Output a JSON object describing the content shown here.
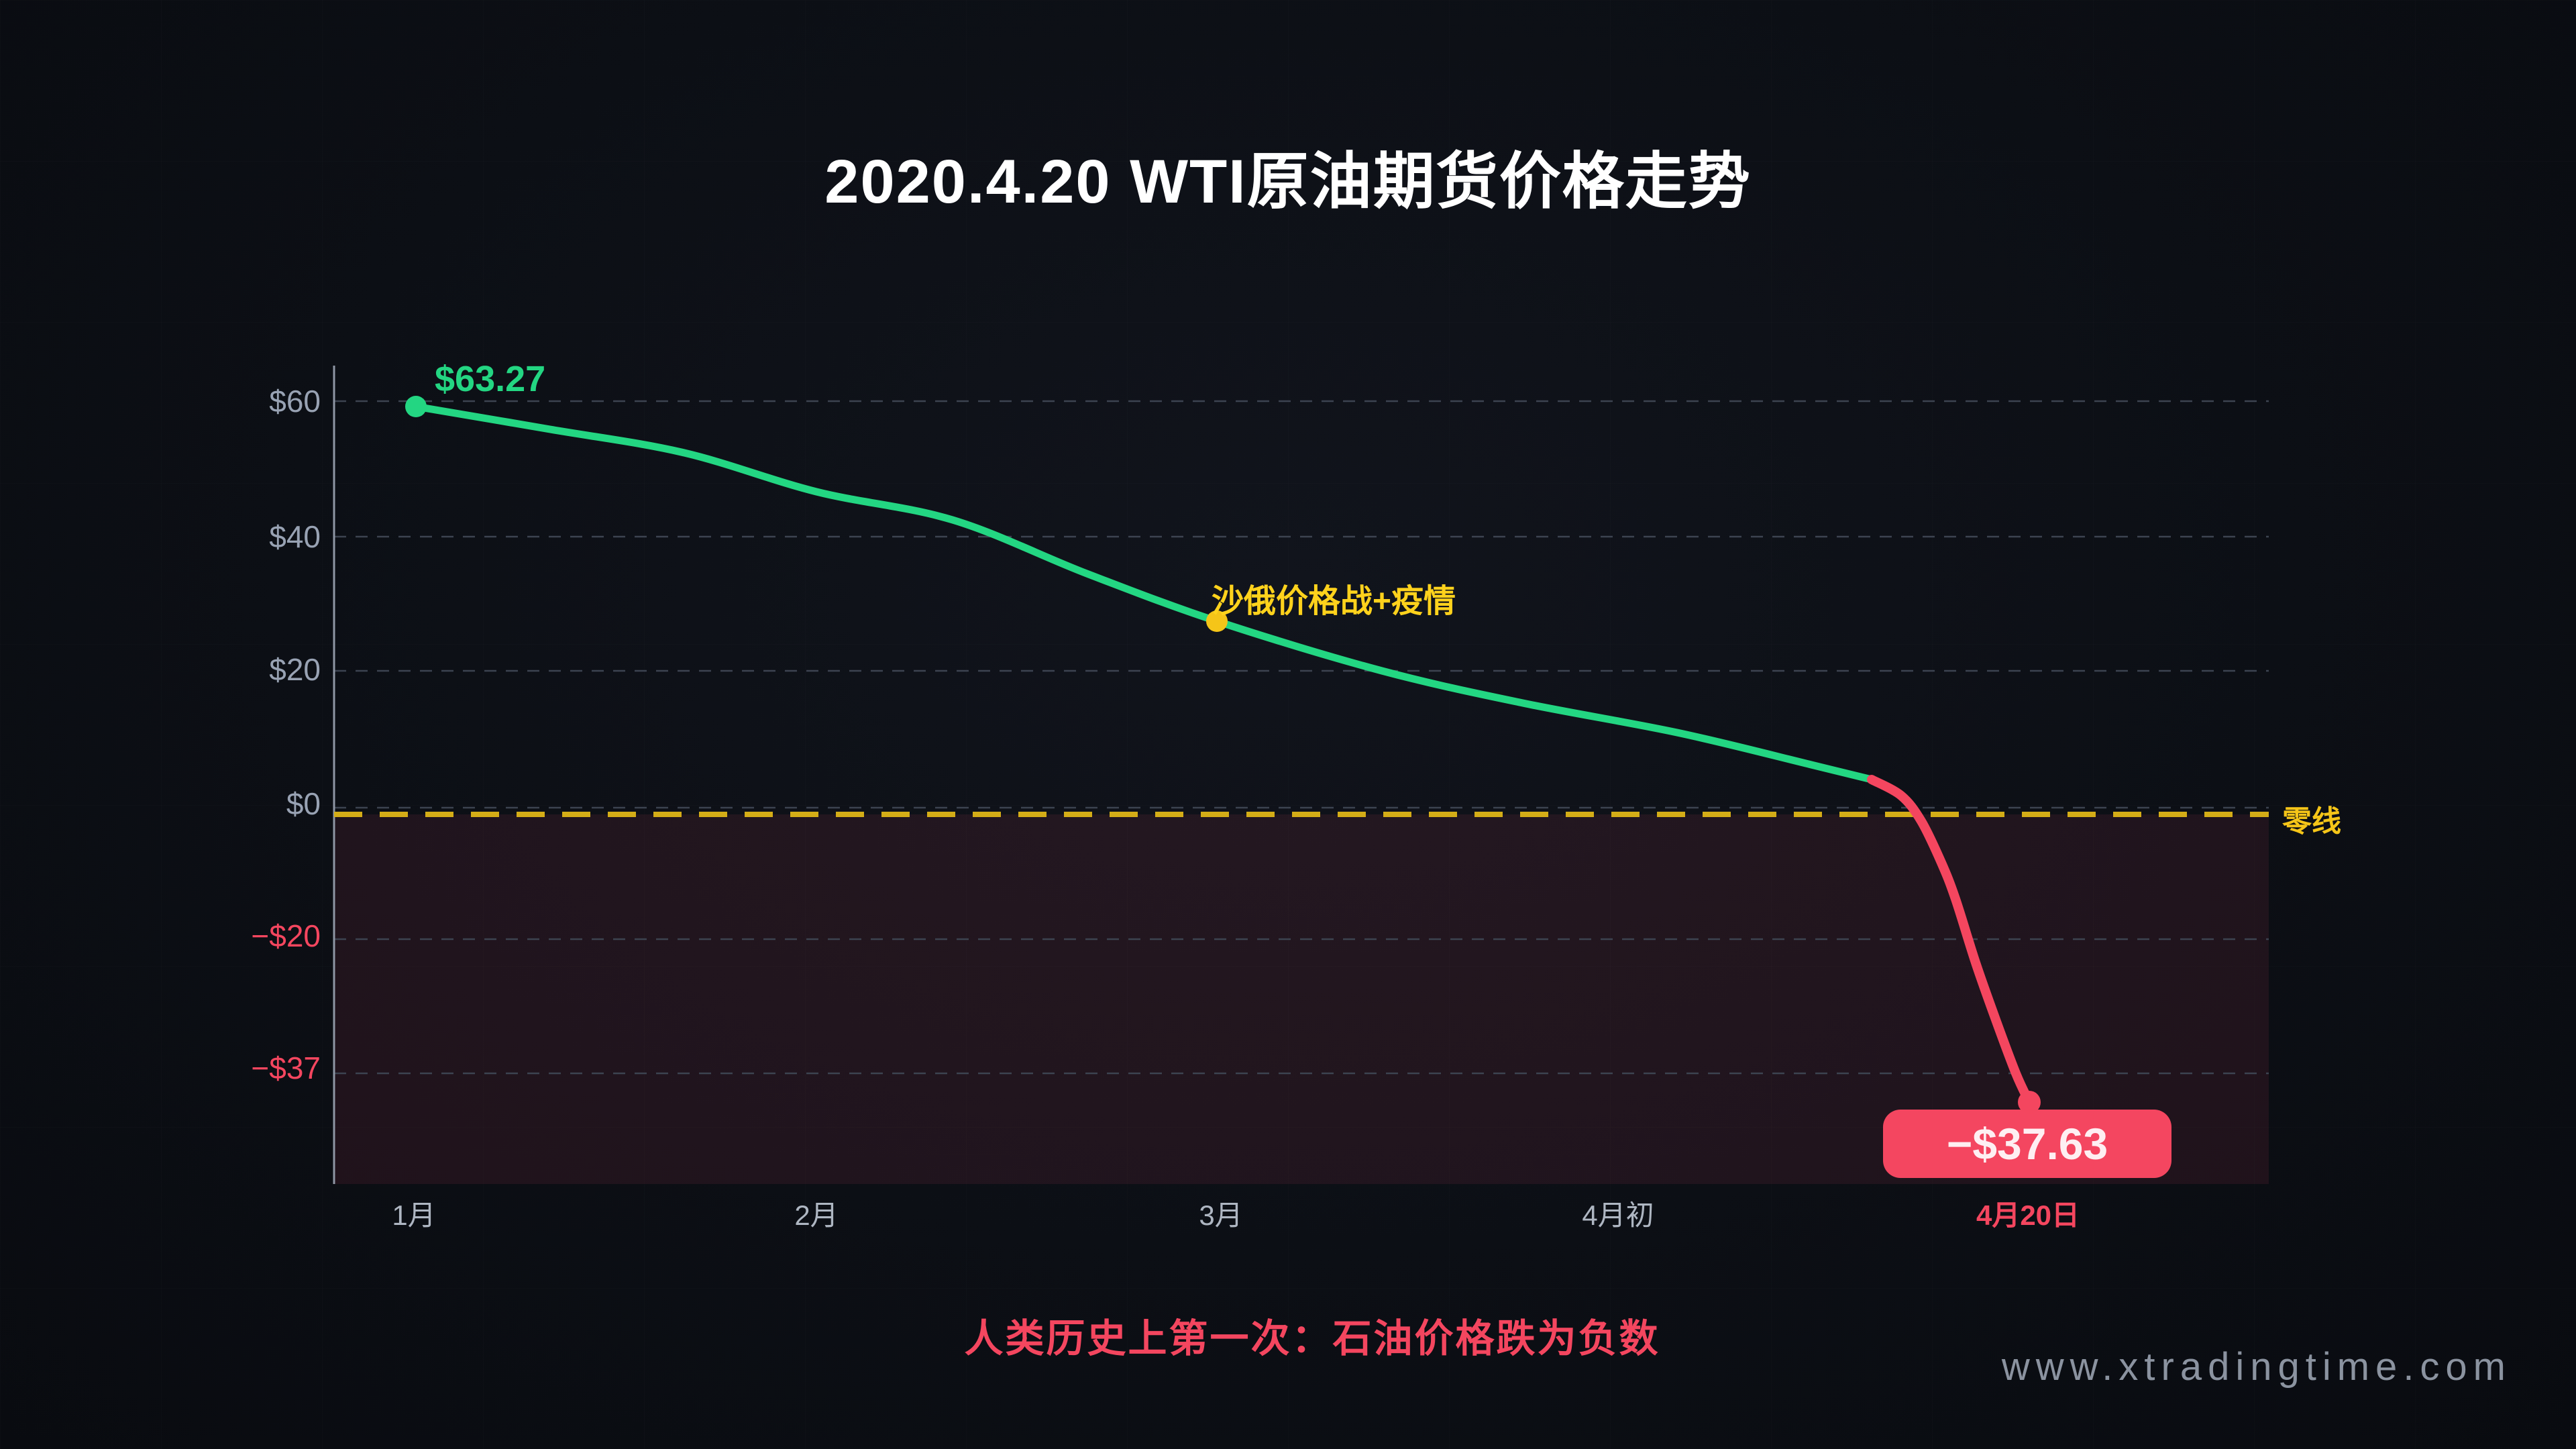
{
  "page": {
    "title": "2020.4.20 WTI原油期货价格走势",
    "caption": "人类历史上第一次：石油价格跌为负数",
    "watermark": "www.xtradingtime.com"
  },
  "chart_data": {
    "type": "line",
    "title": "2020.4.20 WTI原油期货价格走势",
    "x_tick_labels": [
      "1月",
      "2月",
      "3月",
      "4月初",
      "4月20日"
    ],
    "y_tick_labels": [
      "$60",
      "$40",
      "$20",
      "$0",
      "−$20",
      "−$37"
    ],
    "y_tick_values": [
      60,
      40,
      20,
      0,
      -20,
      -37
    ],
    "ylim": [
      -45,
      70
    ],
    "grid": "dashed-horizontal",
    "zero_line": {
      "value": 0,
      "style": "dashed",
      "color": "#d4ad17",
      "label": "零线"
    },
    "series": [
      {
        "name": "WTI原油期货价格",
        "color_positive": "#23d682",
        "color_negative": "#f4465f",
        "points": [
          {
            "x": "1月",
            "value": 63.27
          },
          {
            "x": "2月",
            "value": 47
          },
          {
            "x": "3月",
            "value": 28
          },
          {
            "x": "4月初",
            "value": 15
          },
          {
            "x": "4月20日",
            "value": -37.63
          }
        ]
      }
    ],
    "annotations": {
      "start_point_label": "$63.27",
      "march_event_label": "沙俄价格战+疫情",
      "zero_line_label": "零线",
      "end_point_label": "−$37.63",
      "end_date_label": "4月20日"
    },
    "legend_position": "none"
  },
  "colors": {
    "background": "#0c0f15",
    "title_text": "#ffffff",
    "green": "#23d682",
    "red": "#f4465f",
    "yellow_line": "#d4ad17",
    "yellow_dot": "#f5c518",
    "annotation_yellow": "#ffd21c",
    "axis_label_gray": "#98a2b3",
    "x_label_gray": "#aeb6c2",
    "grid_gray": "#3c4350",
    "axis_line": "#8e96a4",
    "negative_region_tint": "rgba(242,80,110,0.09)",
    "watermark_gray": "#8b93a0"
  }
}
